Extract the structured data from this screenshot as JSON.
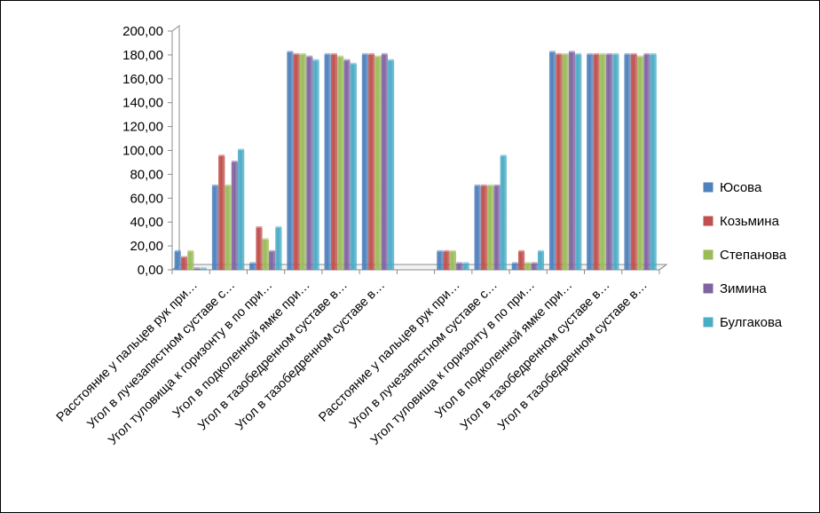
{
  "chart_data": {
    "type": "bar",
    "ylim": [
      0,
      200
    ],
    "y_ticks": [
      "0,00",
      "20,00",
      "40,00",
      "60,00",
      "80,00",
      "100,00",
      "120,00",
      "140,00",
      "160,00",
      "180,00",
      "200,00"
    ],
    "categories": [
      "Расстояние у пальцев рук при…",
      "Угол в лучезапястном суставе с…",
      "Угол туловища к горизонту в по при…",
      "Угол в подколенной ямке при…",
      "Угол в тазобедренном суставе в…",
      "Угол в тазобедренном суставе в…",
      "",
      "Расстояние у пальцев рук при…",
      "Угол в лучезапястном суставе с…",
      "Угол туловища к горизонту в по при…",
      "Угол в подколенной ямке при…",
      "Угол в тазобедренном суставе в…",
      "Угол в тазобедренном суставе в…"
    ],
    "series": [
      {
        "name": "Юсова",
        "color": "#4f81bd",
        "values": [
          15,
          70,
          5,
          182,
          180,
          180,
          null,
          15,
          70,
          5,
          182,
          180,
          180
        ]
      },
      {
        "name": "Козьмина",
        "color": "#c0504d",
        "values": [
          10,
          95,
          35,
          180,
          180,
          180,
          null,
          15,
          70,
          15,
          180,
          180,
          180
        ]
      },
      {
        "name": "Степанова",
        "color": "#9bbb59",
        "values": [
          15,
          70,
          25,
          180,
          178,
          178,
          null,
          15,
          70,
          5,
          180,
          180,
          178
        ]
      },
      {
        "name": "Зимина",
        "color": "#8064a2",
        "values": [
          0,
          90,
          15,
          178,
          175,
          180,
          null,
          5,
          70,
          5,
          182,
          180,
          180
        ]
      },
      {
        "name": "Булгакова",
        "color": "#4bacc6",
        "values": [
          0,
          100,
          35,
          175,
          172,
          175,
          null,
          5,
          95,
          15,
          180,
          180,
          180
        ]
      }
    ],
    "grid": false,
    "legend": "right"
  }
}
